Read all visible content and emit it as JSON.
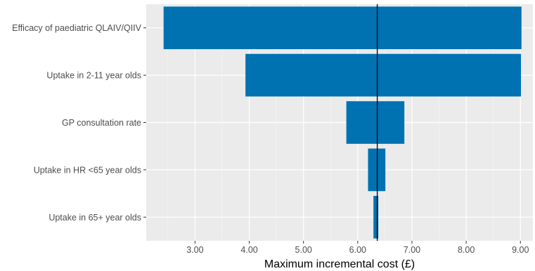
{
  "chart_data": {
    "type": "bar",
    "orientation": "horizontal",
    "subtype": "tornado",
    "categories": [
      "Efficacy of paediatric QLAIV/QIIV",
      "Uptake in 2-11 year olds",
      "GP consultation rate",
      "Uptake in HR <65 year olds",
      "Uptake in 65+ year olds"
    ],
    "bars": [
      {
        "category": "Efficacy of paediatric QLAIV/QIIV",
        "low": 2.42,
        "high": 9.02
      },
      {
        "category": "Uptake in 2-11 year olds",
        "low": 3.93,
        "high": 9.01
      },
      {
        "category": "GP consultation rate",
        "low": 5.79,
        "high": 6.86
      },
      {
        "category": "Uptake in HR <65 year olds",
        "low": 6.19,
        "high": 6.51
      },
      {
        "category": "Uptake in 65+ year olds",
        "low": 6.29,
        "high": 6.38
      }
    ],
    "base_value": 6.36,
    "x_ticks": [
      3.0,
      4.0,
      5.0,
      6.0,
      7.0,
      8.0,
      9.0
    ],
    "x_tick_labels": [
      "3.00",
      "4.00",
      "5.00",
      "6.00",
      "7.00",
      "8.00",
      "9.00"
    ],
    "xlim": [
      2.1,
      9.23
    ],
    "xlabel": "Maximum incremental cost (£)",
    "ylabel": "",
    "title": "",
    "grid": true,
    "legend": "none",
    "colors": {
      "bar": "#0072b2",
      "panel": "#ebebeb",
      "grid_major": "#ffffff",
      "grid_minor": "#f5f5f5",
      "reference_line": "#000000"
    }
  }
}
